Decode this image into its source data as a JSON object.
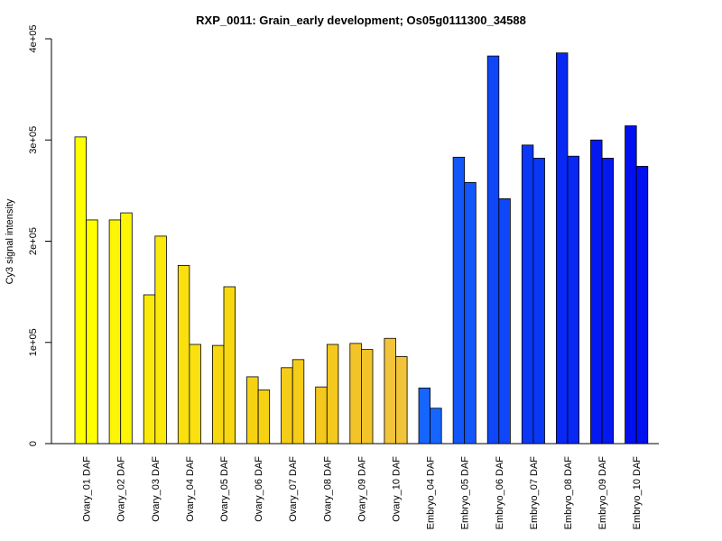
{
  "chart_data": {
    "type": "bar",
    "title": "RXP_0011: Grain_early development; Os05g0111300_34588",
    "xlabel": "",
    "ylabel": "Cy3 signal intensity",
    "ylim": [
      0,
      400000
    ],
    "yticks": [
      0,
      100000,
      200000,
      300000,
      400000
    ],
    "ytick_labels": [
      "0",
      "1e+05",
      "2e+05",
      "3e+05",
      "4e+05"
    ],
    "grid": false,
    "legend": "none",
    "categories": [
      "Ovary_01 DAF",
      "Ovary_02 DAF",
      "Ovary_03 DAF",
      "Ovary_04 DAF",
      "Ovary_05 DAF",
      "Ovary_06 DAF",
      "Ovary_07 DAF",
      "Ovary_08 DAF",
      "Ovary_09 DAF",
      "Ovary_10 DAF",
      "Embryo_04 DAF",
      "Embryo_05 DAF",
      "Embryo_06 DAF",
      "Embryo_07 DAF",
      "Embryo_08 DAF",
      "Embryo_09 DAF",
      "Embryo_10 DAF"
    ],
    "category_colors": [
      "#ffff00",
      "#fdf506",
      "#fbe90b",
      "#f9e00e",
      "#f7d810",
      "#f6d213",
      "#f5cc18",
      "#f4c81c",
      "#f3c42a",
      "#f2c43a",
      "#1565ff",
      "#1356fa",
      "#0f46f7",
      "#0b38f5",
      "#0828f3",
      "#0418f0",
      "#0010ef"
    ],
    "series": [
      {
        "values": [
          303000,
          221000,
          147000,
          176000,
          97000,
          66000,
          75000,
          56000,
          99000,
          104000,
          55000,
          283000,
          383000,
          295000,
          386000,
          300000,
          314000
        ]
      },
      {
        "values": [
          221000,
          228000,
          205000,
          98000,
          155000,
          53000,
          83000,
          98000,
          93000,
          86000,
          35000,
          258000,
          242000,
          282000,
          284000,
          282000,
          274000
        ]
      }
    ]
  }
}
